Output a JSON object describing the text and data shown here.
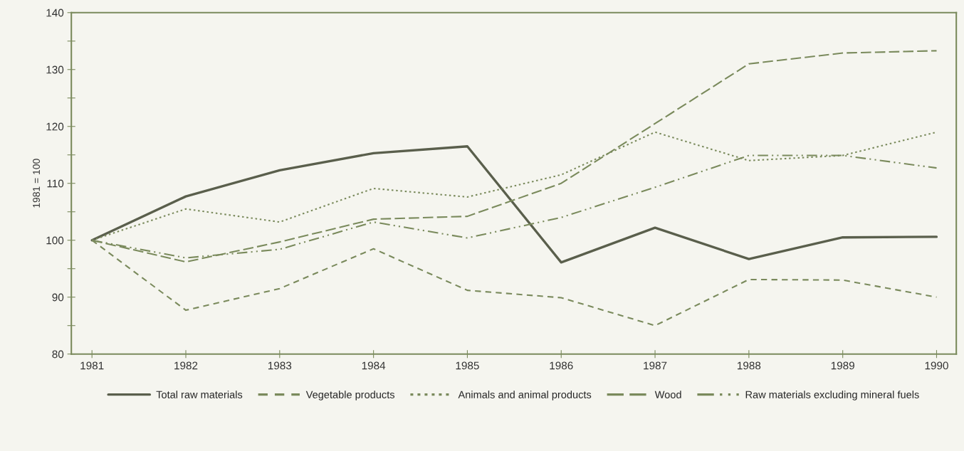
{
  "chart_data": {
    "type": "line",
    "ylabel": "1981 = 100",
    "x": [
      1981,
      1982,
      1983,
      1984,
      1985,
      1986,
      1987,
      1988,
      1989,
      1990
    ],
    "xlim": [
      1980.78,
      1990.21
    ],
    "xticks": [
      1981,
      1982,
      1983,
      1984,
      1985,
      1986,
      1987,
      1988,
      1989,
      1990
    ],
    "ylim": [
      80,
      140
    ],
    "yticks": [
      80,
      {
        "value": 85,
        "label": null
      },
      90,
      {
        "value": 95,
        "label": null
      },
      100,
      {
        "value": 105,
        "label": null
      },
      110,
      {
        "value": 115,
        "label": null
      },
      120,
      {
        "value": 125,
        "label": null
      },
      130,
      {
        "value": 135,
        "label": null
      },
      140
    ],
    "grid": false,
    "legend": "bottom",
    "marker": "none",
    "series": [
      {
        "name": "Total raw materials",
        "color": "#5a5f4c",
        "line_style": "solid",
        "values": [
          100,
          107.7,
          112.3,
          115.3,
          116.5,
          96.1,
          102.2,
          96.7,
          100.5,
          100.6
        ]
      },
      {
        "name": "Vegetable products",
        "color": "#7a8a5c",
        "line_style": "dashed",
        "values": [
          100,
          87.7,
          91.5,
          98.5,
          91.2,
          89.9,
          85.0,
          93.1,
          93.0,
          90.0
        ]
      },
      {
        "name": "Animals and animal products",
        "color": "#7a8a5c",
        "line_style": "dotted",
        "values": [
          100,
          105.5,
          103.2,
          109.1,
          107.6,
          111.5,
          119.0,
          114.0,
          114.9,
          119.0
        ]
      },
      {
        "name": "Wood",
        "color": "#7a8a5c",
        "line_style": "longdash",
        "values": [
          100,
          96.2,
          99.7,
          103.7,
          104.2,
          110.0,
          120.5,
          131.0,
          132.9,
          133.3
        ]
      },
      {
        "name": "Raw materials excluding mineral fuels",
        "color": "#7a8a5c",
        "line_style": "dashdotdot",
        "values": [
          100,
          96.9,
          98.4,
          103.2,
          100.4,
          104.0,
          109.3,
          114.9,
          114.9,
          112.7
        ]
      }
    ]
  }
}
